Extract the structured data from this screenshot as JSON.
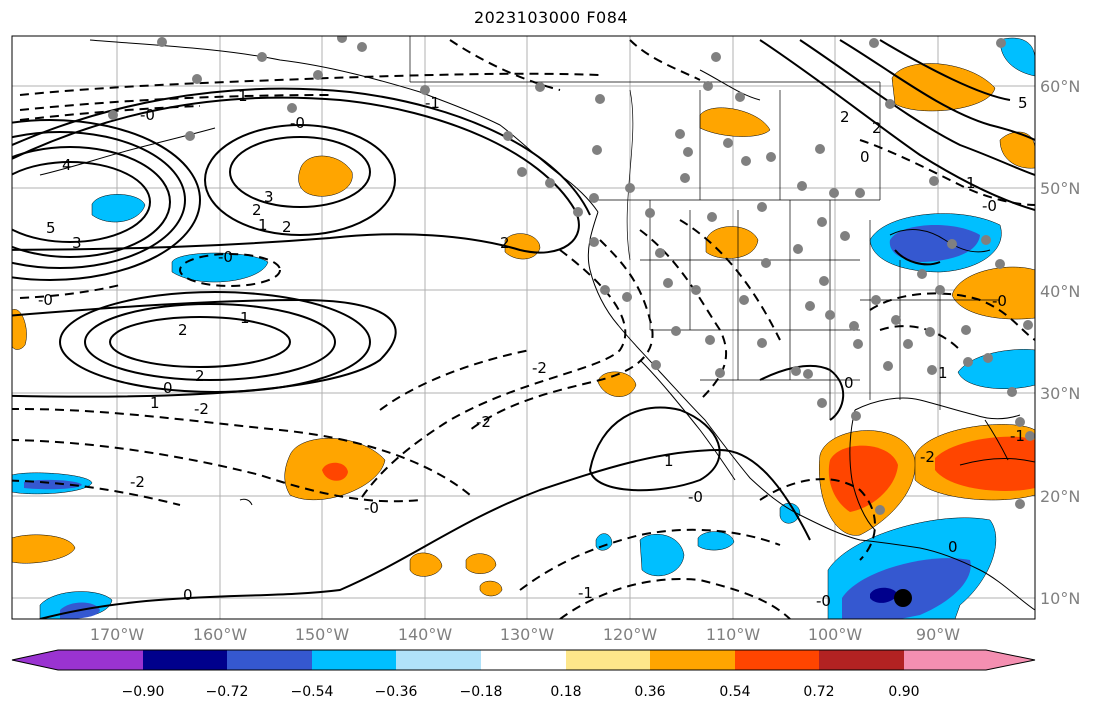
{
  "title": "2023103000 F084",
  "map": {
    "lat_labels": [
      "60°N",
      "50°N",
      "40°N",
      "30°N",
      "20°N",
      "10°N"
    ],
    "lon_labels": [
      "170°W",
      "160°W",
      "150°W",
      "140°W",
      "130°W",
      "120°W",
      "110°W",
      "100°W",
      "90°W"
    ],
    "contour_labels": {
      "solid": [
        "4",
        "5",
        "3",
        "3",
        "2",
        "1",
        "2",
        "2",
        "2",
        "1",
        "2",
        "0",
        "1",
        "1",
        "0",
        "1",
        "5",
        "2",
        "2",
        "1",
        "0",
        "0",
        "0",
        "1"
      ],
      "dashed": [
        "-0",
        "-0",
        "-0",
        "-2",
        "-2",
        "-2",
        "-0",
        "-1",
        "-0",
        "-0",
        "-2",
        "-1",
        "-0",
        "-0",
        "-2",
        "-1",
        "-0"
      ]
    }
  },
  "colorbar": {
    "tick_labels": [
      "−0.90",
      "−0.72",
      "−0.54",
      "−0.36",
      "−0.18",
      "0.18",
      "0.36",
      "0.54",
      "0.72",
      "0.90"
    ],
    "colors": [
      "#9a33d1",
      "#00008c",
      "#3558d0",
      "#00bfff",
      "#b0e2fa",
      "#ffffff",
      "#fde68a",
      "#ffa500",
      "#ff4500",
      "#b22222",
      "#f48fb1"
    ]
  }
}
